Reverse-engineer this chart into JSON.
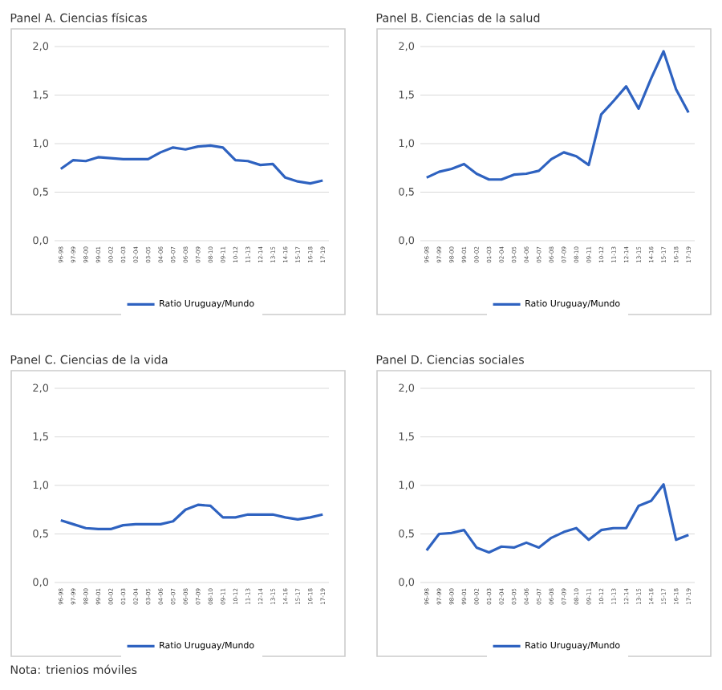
{
  "chart_data": [
    {
      "type": "line",
      "title": "Panel A. Ciencias físicas",
      "categories": [
        "96-98",
        "97-99",
        "98-00",
        "99-01",
        "00-02",
        "01-03",
        "02-04",
        "03-05",
        "04-06",
        "05-07",
        "06-08",
        "07-09",
        "08-10",
        "09-11",
        "10-12",
        "11-13",
        "12-14",
        "13-15",
        "14-16",
        "15-17",
        "16-18",
        "17-19"
      ],
      "series": [
        {
          "name": "Ratio Uruguay/Mundo",
          "color": "#2e62c0",
          "values": [
            0.74,
            0.83,
            0.82,
            0.86,
            0.85,
            0.84,
            0.84,
            0.84,
            0.91,
            0.96,
            0.94,
            0.97,
            0.98,
            0.96,
            0.83,
            0.82,
            0.78,
            0.79,
            0.65,
            0.61,
            0.59,
            0.62
          ]
        }
      ],
      "ylim": [
        0,
        2
      ],
      "yticks": [
        {
          "value": 0,
          "label": "0,0"
        },
        {
          "value": 0.5,
          "label": "0,5"
        },
        {
          "value": 1,
          "label": "1,0"
        },
        {
          "value": 1.5,
          "label": "1,5"
        },
        {
          "value": 2,
          "label": "2,0"
        }
      ],
      "grid": "y",
      "legend": "bottom",
      "marker": "none",
      "line_style": "solid"
    },
    {
      "type": "line",
      "title": "Panel B. Ciencias de la salud",
      "categories": [
        "96-98",
        "97-99",
        "98-00",
        "99-01",
        "00-02",
        "01-03",
        "02-04",
        "03-05",
        "04-06",
        "05-07",
        "06-08",
        "07-09",
        "08-10",
        "09-11",
        "10-12",
        "11-13",
        "12-14",
        "13-15",
        "14-16",
        "15-17",
        "16-18",
        "17-19"
      ],
      "series": [
        {
          "name": "Ratio Uruguay/Mundo",
          "color": "#2e62c0",
          "values": [
            0.65,
            0.71,
            0.74,
            0.79,
            0.69,
            0.63,
            0.63,
            0.68,
            0.69,
            0.72,
            0.84,
            0.91,
            0.87,
            0.78,
            1.3,
            1.44,
            1.59,
            1.36,
            1.67,
            1.95,
            1.56,
            1.32
          ]
        }
      ],
      "ylim": [
        0,
        2
      ],
      "yticks": [
        {
          "value": 0,
          "label": "0,0"
        },
        {
          "value": 0.5,
          "label": "0,5"
        },
        {
          "value": 1,
          "label": "1,0"
        },
        {
          "value": 1.5,
          "label": "1,5"
        },
        {
          "value": 2,
          "label": "2,0"
        }
      ],
      "grid": "y",
      "legend": "bottom",
      "marker": "none",
      "line_style": "solid"
    },
    {
      "type": "line",
      "title": "Panel C. Ciencias de la vida",
      "categories": [
        "96-98",
        "97-99",
        "98-00",
        "99-01",
        "00-02",
        "01-03",
        "02-04",
        "03-05",
        "04-06",
        "05-07",
        "06-08",
        "07-09",
        "08-10",
        "09-11",
        "10-12",
        "11-13",
        "12-14",
        "13-15",
        "14-16",
        "15-17",
        "16-18",
        "17-19"
      ],
      "series": [
        {
          "name": "Ratio Uruguay/Mundo",
          "color": "#2e62c0",
          "values": [
            0.64,
            0.6,
            0.56,
            0.55,
            0.55,
            0.59,
            0.6,
            0.6,
            0.6,
            0.63,
            0.75,
            0.8,
            0.79,
            0.67,
            0.67,
            0.7,
            0.7,
            0.7,
            0.67,
            0.65,
            0.67,
            0.7
          ]
        }
      ],
      "ylim": [
        0,
        2
      ],
      "yticks": [
        {
          "value": 0,
          "label": "0,0"
        },
        {
          "value": 0.5,
          "label": "0,5"
        },
        {
          "value": 1,
          "label": "1,0"
        },
        {
          "value": 1.5,
          "label": "1,5"
        },
        {
          "value": 2,
          "label": "2,0"
        }
      ],
      "grid": "y",
      "legend": "bottom",
      "marker": "none",
      "line_style": "solid",
      "annotations": [
        "Nota: trienios móviles"
      ]
    },
    {
      "type": "line",
      "title": "Panel D. Ciencias sociales",
      "categories": [
        "96-98",
        "97-99",
        "98-00",
        "99-01",
        "00-02",
        "01-03",
        "02-04",
        "03-05",
        "04-06",
        "05-07",
        "06-08",
        "07-09",
        "08-10",
        "09-11",
        "10-12",
        "11-13",
        "12-14",
        "13-15",
        "14-16",
        "15-17",
        "16-18",
        "17-19"
      ],
      "series": [
        {
          "name": "Ratio Uruguay/Mundo",
          "color": "#2e62c0",
          "values": [
            0.33,
            0.5,
            0.51,
            0.54,
            0.36,
            0.31,
            0.37,
            0.36,
            0.41,
            0.36,
            0.46,
            0.52,
            0.56,
            0.44,
            0.54,
            0.56,
            0.56,
            0.79,
            0.84,
            1.01,
            0.44,
            0.49
          ]
        }
      ],
      "ylim": [
        0,
        2
      ],
      "yticks": [
        {
          "value": 0,
          "label": "0,0"
        },
        {
          "value": 0.5,
          "label": "0,5"
        },
        {
          "value": 1,
          "label": "1,0"
        },
        {
          "value": 1.5,
          "label": "1,5"
        },
        {
          "value": 2,
          "label": "2,0"
        }
      ],
      "grid": "y",
      "legend": "bottom",
      "marker": "none",
      "line_style": "solid"
    }
  ]
}
